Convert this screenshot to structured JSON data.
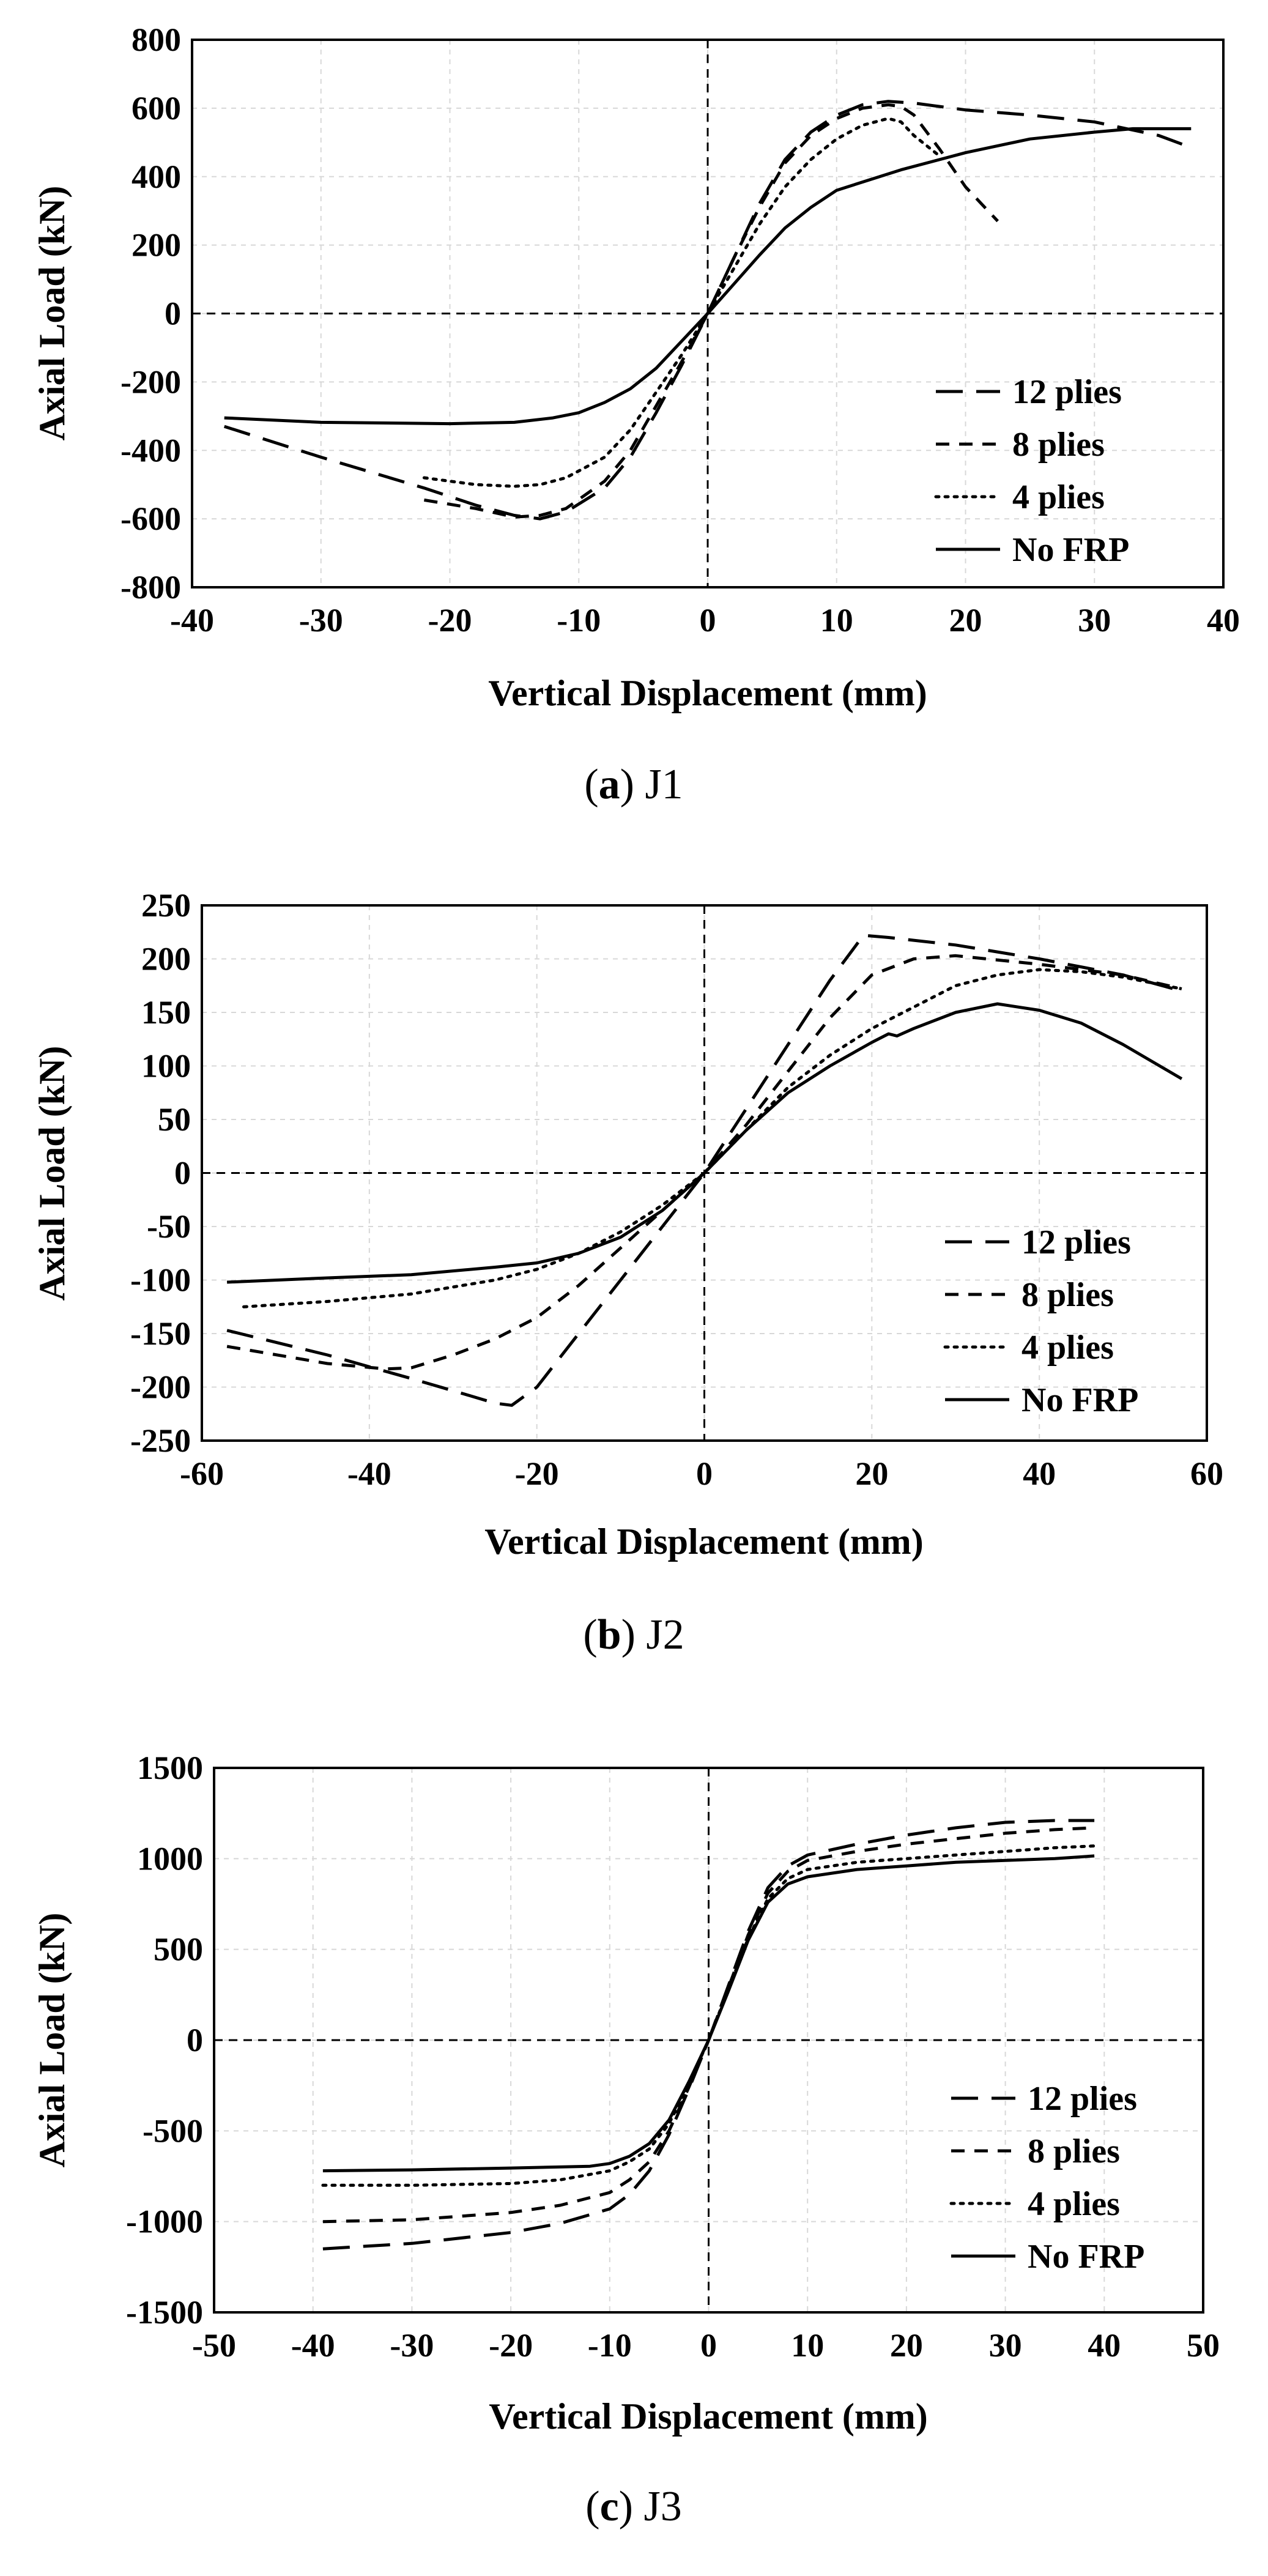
{
  "chart_data": [
    {
      "type": "line",
      "xlabel": "Vertical Displacement (mm)",
      "ylabel": "Axial Load (kN)",
      "xlim": [
        -40,
        40
      ],
      "ylim": [
        -800,
        800
      ],
      "xticks": [
        "-40",
        "-30",
        "-20",
        "-10",
        "0",
        "10",
        "20",
        "30",
        "40"
      ],
      "yticks": [
        "800",
        "600",
        "400",
        "200",
        "0",
        "-200",
        "-400",
        "-600",
        "-800"
      ],
      "xtick_values": [
        -40,
        -30,
        -20,
        -10,
        0,
        10,
        20,
        30,
        40
      ],
      "ytick_values": [
        800,
        600,
        400,
        200,
        0,
        -200,
        -400,
        -600,
        -800
      ],
      "caption": {
        "letter": "a",
        "label": "J1"
      },
      "legend_position": "bottom-right",
      "series": [
        {
          "name": "12 plies",
          "style": "long-dash",
          "x": [
            -37.5,
            -30,
            -22,
            -18,
            -15,
            -13,
            -11,
            -8,
            -6,
            -4,
            -2,
            0,
            2,
            4,
            6,
            8,
            10,
            12,
            14,
            16,
            18,
            20,
            25,
            30,
            35,
            37.5
          ],
          "y": [
            -330,
            -420,
            -510,
            -560,
            -590,
            -600,
            -580,
            -510,
            -420,
            -290,
            -150,
            0,
            160,
            320,
            450,
            530,
            580,
            610,
            620,
            615,
            605,
            595,
            580,
            560,
            520,
            485
          ]
        },
        {
          "name": "8 plies",
          "style": "short-dash",
          "x": [
            -22,
            -18,
            -15,
            -13,
            -11,
            -8,
            -6,
            -4,
            -2,
            0,
            2,
            4,
            6,
            8,
            10,
            12,
            14,
            15,
            16,
            18,
            20,
            22.5
          ],
          "y": [
            -545,
            -570,
            -595,
            -590,
            -570,
            -490,
            -400,
            -270,
            -140,
            0,
            160,
            310,
            440,
            520,
            570,
            600,
            610,
            605,
            580,
            480,
            370,
            270
          ]
        },
        {
          "name": "4 plies",
          "style": "dotted",
          "x": [
            -22,
            -18,
            -15,
            -13,
            -11,
            -8,
            -6,
            -4,
            -2,
            0,
            2,
            4,
            6,
            8,
            10,
            12,
            14,
            15,
            16,
            18
          ],
          "y": [
            -480,
            -500,
            -505,
            -500,
            -480,
            -420,
            -340,
            -230,
            -120,
            0,
            130,
            260,
            370,
            450,
            510,
            550,
            570,
            560,
            520,
            460
          ]
        },
        {
          "name": "No FRP",
          "style": "solid",
          "x": [
            -37.5,
            -30,
            -20,
            -15,
            -12,
            -10,
            -8,
            -6,
            -4,
            -2,
            0,
            2,
            4,
            6,
            8,
            10,
            15,
            20,
            25,
            30,
            33,
            37.5
          ],
          "y": [
            -305,
            -318,
            -322,
            -318,
            -305,
            -290,
            -260,
            -220,
            -160,
            -80,
            0,
            85,
            170,
            250,
            310,
            360,
            420,
            470,
            510,
            530,
            540,
            540
          ]
        }
      ]
    },
    {
      "type": "line",
      "xlabel": "Vertical Displacement (mm)",
      "ylabel": "Axial Load (kN)",
      "xlim": [
        -60,
        60
      ],
      "ylim": [
        -250,
        250
      ],
      "xticks": [
        "-60",
        "-40",
        "-20",
        "0",
        "20",
        "40",
        "60"
      ],
      "yticks": [
        "250",
        "200",
        "150",
        "100",
        "50",
        "0",
        "-50",
        "-100",
        "-150",
        "-200",
        "-250"
      ],
      "xtick_values": [
        -60,
        -40,
        -20,
        0,
        20,
        40,
        60
      ],
      "ytick_values": [
        250,
        200,
        150,
        100,
        50,
        0,
        -50,
        -100,
        -150,
        -200,
        -250
      ],
      "caption": {
        "letter": "b",
        "label": "J2"
      },
      "legend_position": "bottom-right",
      "series": [
        {
          "name": "12 plies",
          "style": "long-dash",
          "x": [
            -57,
            -45,
            -35,
            -28,
            -25,
            -23,
            -20,
            -15,
            -10,
            -5,
            0,
            5,
            10,
            15,
            19,
            22,
            30,
            40,
            50,
            57
          ],
          "y": [
            -147,
            -170,
            -192,
            -208,
            -215,
            -217,
            -200,
            -150,
            -100,
            -50,
            0,
            60,
            120,
            180,
            222,
            220,
            213,
            200,
            185,
            170
          ]
        },
        {
          "name": "8 plies",
          "style": "short-dash",
          "x": [
            -57,
            -45,
            -38,
            -35,
            -30,
            -25,
            -20,
            -15,
            -10,
            -5,
            0,
            5,
            10,
            15,
            20,
            25,
            30,
            40,
            50,
            57
          ],
          "y": [
            -162,
            -178,
            -183,
            -182,
            -170,
            -155,
            -135,
            -105,
            -70,
            -35,
            0,
            45,
            95,
            145,
            185,
            200,
            203,
            195,
            185,
            172
          ]
        },
        {
          "name": "4 plies",
          "style": "dotted",
          "x": [
            -55,
            -45,
            -35,
            -25,
            -20,
            -15,
            -10,
            -5,
            0,
            5,
            10,
            15,
            20,
            25,
            30,
            35,
            40,
            45,
            50,
            57
          ],
          "y": [
            -125,
            -120,
            -113,
            -100,
            -90,
            -75,
            -55,
            -30,
            0,
            40,
            80,
            110,
            135,
            155,
            175,
            185,
            190,
            188,
            183,
            172
          ]
        },
        {
          "name": "No FRP",
          "style": "solid",
          "x": [
            -57,
            -45,
            -35,
            -25,
            -20,
            -15,
            -10,
            -5,
            0,
            5,
            10,
            15,
            20,
            22,
            23,
            25,
            30,
            35,
            40,
            45,
            50,
            57
          ],
          "y": [
            -102,
            -98,
            -95,
            -88,
            -84,
            -75,
            -60,
            -35,
            0,
            40,
            75,
            100,
            122,
            130,
            128,
            135,
            150,
            158,
            152,
            140,
            120,
            88
          ]
        }
      ]
    },
    {
      "type": "line",
      "xlabel": "Vertical Displacement (mm)",
      "ylabel": "Axial Load (kN)",
      "xlim": [
        -50,
        50
      ],
      "ylim": [
        -1500,
        1500
      ],
      "xticks": [
        "-50",
        "-40",
        "-30",
        "-20",
        "-10",
        "0",
        "10",
        "20",
        "30",
        "40",
        "50"
      ],
      "yticks": [
        "1500",
        "1000",
        "500",
        "0",
        "-500",
        "-1000",
        "-1500"
      ],
      "xtick_values": [
        -50,
        -40,
        -30,
        -20,
        -10,
        0,
        10,
        20,
        30,
        40,
        50
      ],
      "ytick_values": [
        1500,
        1000,
        500,
        0,
        -500,
        -1000,
        -1500
      ],
      "caption": {
        "letter": "c",
        "label": "J3"
      },
      "legend_position": "bottom-right",
      "series": [
        {
          "name": "12 plies",
          "style": "long-dash",
          "x": [
            -39,
            -30,
            -20,
            -15,
            -10,
            -8,
            -6,
            -4,
            -2,
            0,
            2,
            4,
            6,
            8,
            10,
            15,
            20,
            25,
            30,
            35,
            39
          ],
          "y": [
            -1150,
            -1120,
            -1060,
            -1010,
            -930,
            -850,
            -720,
            -520,
            -270,
            0,
            300,
            600,
            840,
            960,
            1020,
            1080,
            1130,
            1170,
            1200,
            1210,
            1210
          ]
        },
        {
          "name": "8 plies",
          "style": "short-dash",
          "x": [
            -39,
            -30,
            -20,
            -15,
            -10,
            -8,
            -6,
            -4,
            -2,
            0,
            2,
            4,
            6,
            8,
            10,
            15,
            20,
            25,
            30,
            35,
            39
          ],
          "y": [
            -1000,
            -990,
            -950,
            -910,
            -840,
            -770,
            -670,
            -500,
            -260,
            0,
            290,
            580,
            810,
            930,
            990,
            1040,
            1080,
            1110,
            1140,
            1160,
            1170
          ]
        },
        {
          "name": "4 plies",
          "style": "dotted",
          "x": [
            -39,
            -30,
            -20,
            -15,
            -10,
            -8,
            -6,
            -4,
            -2,
            0,
            2,
            4,
            6,
            8,
            10,
            15,
            20,
            25,
            30,
            35,
            39
          ],
          "y": [
            -800,
            -800,
            -790,
            -770,
            -720,
            -670,
            -600,
            -460,
            -240,
            0,
            280,
            560,
            780,
            890,
            940,
            980,
            1000,
            1020,
            1040,
            1060,
            1070
          ]
        },
        {
          "name": "No FRP",
          "style": "solid",
          "x": [
            -39,
            -30,
            -20,
            -12,
            -10,
            -8,
            -6,
            -4,
            -2,
            0,
            2,
            4,
            6,
            8,
            10,
            15,
            20,
            25,
            30,
            35,
            39
          ],
          "y": [
            -720,
            -715,
            -705,
            -695,
            -680,
            -640,
            -570,
            -440,
            -230,
            0,
            270,
            550,
            760,
            860,
            900,
            940,
            960,
            980,
            990,
            1000,
            1015
          ]
        }
      ]
    }
  ]
}
